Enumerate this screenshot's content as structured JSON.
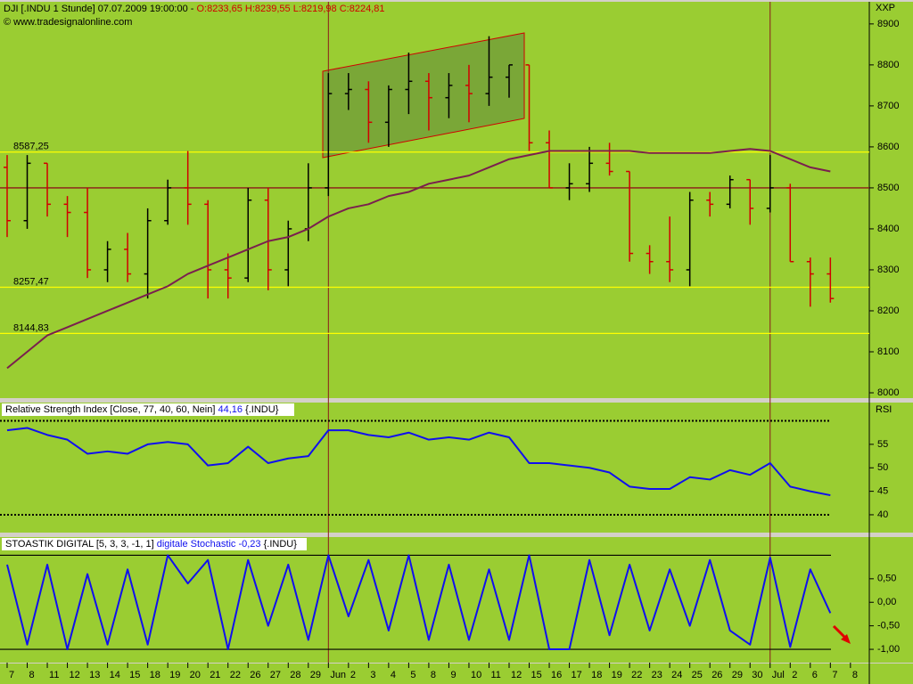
{
  "chart_data": [
    {
      "type": "ohlc",
      "title": "DJI [.INDU  1 Stunde] 07.07.2009 19:00:00 - ",
      "title_values": "O:8233,65 H:8239,55 L:8219,98 C:8224,81",
      "source": "© www.tradesignalonline.com",
      "axis_label": "XXP",
      "categories": [
        "7",
        "8",
        "11",
        "12",
        "13",
        "14",
        "15",
        "18",
        "19",
        "20",
        "21",
        "22",
        "26",
        "27",
        "28",
        "29",
        "Jun",
        "2",
        "3",
        "4",
        "5",
        "8",
        "9",
        "10",
        "11",
        "12",
        "15",
        "16",
        "17",
        "18",
        "19",
        "22",
        "23",
        "24",
        "25",
        "26",
        "29",
        "30",
        "Jul",
        "2",
        "6",
        "7",
        "8"
      ],
      "open": [
        8550,
        8420,
        8560,
        8460,
        8440,
        8300,
        8350,
        8290,
        8420,
        8500,
        8460,
        8300,
        8280,
        8470,
        8300,
        8400,
        8500,
        8730,
        8740,
        8660,
        8740,
        8760,
        8720,
        8750,
        8730,
        8770,
        8800,
        8610,
        8500,
        8510,
        8560,
        8540,
        8340,
        8320,
        8300,
        8470,
        8460,
        8520,
        8450,
        8500,
        8320,
        8290,
        null
      ],
      "high": [
        8580,
        8580,
        8560,
        8480,
        8500,
        8370,
        8390,
        8450,
        8520,
        8590,
        8470,
        8340,
        8500,
        8500,
        8420,
        8560,
        8780,
        8780,
        8760,
        8750,
        8830,
        8780,
        8780,
        8800,
        8870,
        8800,
        8800,
        8640,
        8560,
        8600,
        8610,
        8540,
        8360,
        8430,
        8490,
        8490,
        8530,
        8520,
        8580,
        8510,
        8330,
        8330,
        null
      ],
      "low": [
        8380,
        8400,
        8430,
        8380,
        8280,
        8270,
        8270,
        8230,
        8410,
        8410,
        8230,
        8230,
        8270,
        8250,
        8260,
        8370,
        8480,
        8690,
        8610,
        8600,
        8680,
        8640,
        8670,
        8660,
        8700,
        8720,
        8590,
        8500,
        8470,
        8490,
        8530,
        8320,
        8290,
        8270,
        8260,
        8430,
        8450,
        8410,
        8440,
        8320,
        8210,
        8220,
        null
      ],
      "close": [
        8420,
        8560,
        8460,
        8440,
        8300,
        8350,
        8290,
        8420,
        8500,
        8460,
        8300,
        8280,
        8470,
        8300,
        8400,
        8500,
        8730,
        8740,
        8660,
        8740,
        8760,
        8720,
        8750,
        8730,
        8770,
        8800,
        8610,
        8500,
        8510,
        8560,
        8540,
        8340,
        8320,
        8300,
        8470,
        8460,
        8520,
        8450,
        8500,
        8320,
        8290,
        8230,
        null
      ],
      "up_color": "#000000",
      "down_color": "#d00000",
      "series": [
        {
          "color": "#7a1f4e",
          "values": [
            8060,
            8100,
            8140,
            8160,
            8180,
            8200,
            8220,
            8240,
            8260,
            8290,
            8310,
            8330,
            8350,
            8370,
            8380,
            8400,
            8430,
            8450,
            8460,
            8480,
            8490,
            8510,
            8520,
            8530,
            8550,
            8570,
            8580,
            8590,
            8590,
            8590,
            8590,
            8590,
            8585,
            8585,
            8585,
            8585,
            8590,
            8595,
            8590,
            8570,
            8550,
            8540,
            null
          ]
        }
      ],
      "hlines": [
        {
          "value": 8587.25,
          "label": "8587,25",
          "color": "#ffff00"
        },
        {
          "value": 8257.47,
          "label": "8257,47",
          "color": "#ffff00"
        },
        {
          "value": 8144.83,
          "label": "8144,83",
          "color": "#ffff00"
        },
        {
          "value": 8500,
          "color": "#8b1a1a"
        }
      ],
      "vlines": [
        "Jun",
        "Jul"
      ],
      "ylim": [
        7987,
        8954
      ],
      "yticks": [
        8000,
        8100,
        8200,
        8300,
        8400,
        8500,
        8600,
        8700,
        8800,
        8900
      ]
    },
    {
      "type": "line",
      "title": "Relative Strength Index [Close, 77, 40, 60, Nein]",
      "title_value": "44,16",
      "title_suffix": "{.INDU}",
      "axis_label": "RSI",
      "series": [
        {
          "color": "#1010ee",
          "values": [
            58,
            58.5,
            57,
            56,
            53,
            53.5,
            53,
            55,
            55.5,
            55,
            50.5,
            51,
            54.5,
            51,
            52,
            52.5,
            58,
            58,
            57,
            56.5,
            57.5,
            56,
            56.5,
            56,
            57.5,
            56.5,
            51,
            51,
            50.5,
            50,
            49,
            46,
            45.5,
            45.5,
            48,
            47.5,
            49.5,
            48.5,
            51,
            46,
            45,
            44.16,
            null
          ]
        }
      ],
      "levels": [
        60,
        40
      ],
      "level_style": "dotted",
      "ylim": [
        36.2,
        63.9
      ],
      "yticks": [
        40,
        45,
        50,
        55
      ]
    },
    {
      "type": "line",
      "title": "STOASTIK DIGITAL [5, 3, 3, -1, 1]",
      "title_value": "digitale Stochastic -0,23",
      "title_suffix": "{.INDU}",
      "series": [
        {
          "color": "#1010ee",
          "values": [
            0.8,
            -0.9,
            0.8,
            -1,
            0.6,
            -0.9,
            0.7,
            -0.9,
            1,
            0.4,
            0.9,
            -1,
            0.9,
            -0.5,
            0.8,
            -0.8,
            1,
            -0.3,
            0.9,
            -0.6,
            1,
            -0.8,
            0.8,
            -0.8,
            0.7,
            -0.8,
            1,
            -1,
            -1,
            0.9,
            -0.7,
            0.8,
            -0.6,
            0.7,
            -0.5,
            0.9,
            -0.6,
            -0.9,
            0.95,
            -0.95,
            0.7,
            -0.23,
            null
          ]
        }
      ],
      "levels": [
        1,
        -1
      ],
      "level_style": "solid",
      "ylim": [
        -1.283,
        1.387
      ],
      "yticks": [
        {
          "value": 0.5,
          "label": "0,50"
        },
        {
          "value": 0,
          "label": "0,00"
        },
        {
          "value": -0.5,
          "label": "-0,50"
        },
        {
          "value": -1,
          "label": "-1,00"
        }
      ]
    }
  ]
}
